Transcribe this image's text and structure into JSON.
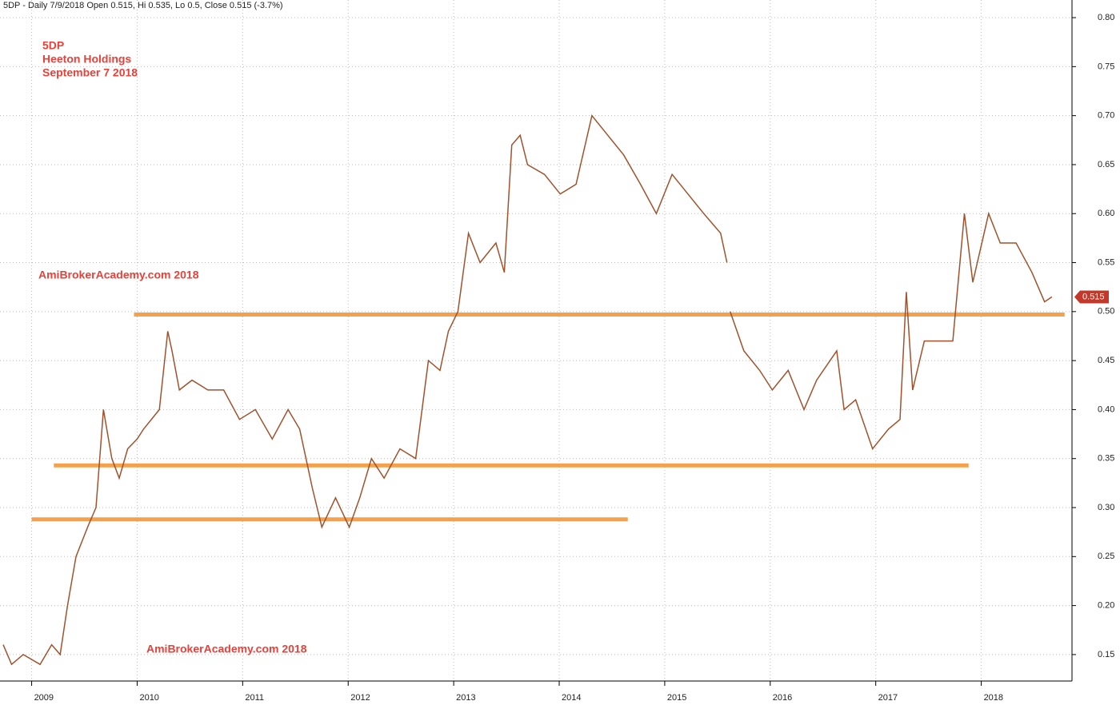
{
  "chart_data": {
    "type": "line",
    "header": "5DP - Daily 7/9/2018 Open 0.515, Hi 0.535, Lo 0.5, Close 0.515 (-3.7%)",
    "annotations": [
      "5DP",
      "Heeton Holdings",
      "September 7 2018",
      "AmiBrokerAcademy.com  2018",
      "AmiBrokerAcademy.com  2018"
    ],
    "color": "#a0522d",
    "x": [
      2008.73,
      2008.81,
      2008.92,
      2009.08,
      2009.19,
      2009.27,
      2009.34,
      2009.42,
      2009.53,
      2009.61,
      2009.68,
      2009.76,
      2009.83,
      2009.91,
      2010.0,
      2010.06,
      2010.21,
      2010.29,
      2010.33,
      2010.4,
      2010.52,
      2010.67,
      2010.82,
      2010.97,
      2011.12,
      2011.28,
      2011.43,
      2011.54,
      2011.66,
      2011.75,
      2011.88,
      2012.01,
      2012.11,
      2012.22,
      2012.34,
      2012.49,
      2012.64,
      2012.76,
      2012.87,
      2012.95,
      2013.04,
      2013.14,
      2013.25,
      2013.4,
      2013.48,
      2013.55,
      2013.63,
      2013.7,
      2013.86,
      2014.01,
      2014.16,
      2014.31,
      2014.46,
      2014.61,
      2014.77,
      2014.92,
      2015.07,
      2015.22,
      2015.37,
      2015.53,
      2015.59,
      2015.6,
      2015.62,
      2015.75,
      2015.9,
      2016.02,
      2016.17,
      2016.32,
      2016.44,
      2016.63,
      2016.7,
      2016.81,
      2016.97,
      2017.12,
      2017.23,
      2017.29,
      2017.35,
      2017.46,
      2017.57,
      2017.73,
      2017.84,
      2017.92,
      2018.07,
      2018.18,
      2018.33,
      2018.48,
      2018.6,
      2018.67
    ],
    "values": [
      0.16,
      0.14,
      0.15,
      0.14,
      0.16,
      0.15,
      0.2,
      0.25,
      0.28,
      0.3,
      0.4,
      0.35,
      0.33,
      0.36,
      0.37,
      0.38,
      0.4,
      0.48,
      0.46,
      0.42,
      0.43,
      0.42,
      0.42,
      0.39,
      0.4,
      0.37,
      0.4,
      0.38,
      0.32,
      0.28,
      0.31,
      0.28,
      0.31,
      0.35,
      0.33,
      0.36,
      0.35,
      0.45,
      0.44,
      0.48,
      0.5,
      0.58,
      0.55,
      0.57,
      0.54,
      0.67,
      0.68,
      0.65,
      0.64,
      0.62,
      0.63,
      0.7,
      0.68,
      0.66,
      0.63,
      0.6,
      0.64,
      0.62,
      0.6,
      0.58,
      0.55,
      null,
      0.5,
      0.46,
      0.44,
      0.42,
      0.44,
      0.4,
      0.43,
      0.46,
      0.4,
      0.41,
      0.36,
      0.38,
      0.39,
      0.52,
      0.42,
      0.47,
      0.47,
      0.47,
      0.6,
      0.53,
      0.6,
      0.57,
      0.57,
      0.54,
      0.51,
      0.515
    ],
    "hlines": [
      {
        "value": 0.497,
        "start": 2009.97,
        "end": 2018.79,
        "color": "#f5a04a"
      },
      {
        "value": 0.343,
        "start": 2009.21,
        "end": 2017.88,
        "color": "#f5a04a"
      },
      {
        "value": 0.288,
        "start": 2009.0,
        "end": 2014.65,
        "color": "#f5a04a"
      }
    ],
    "last_price": {
      "value": 0.515,
      "label": "0.515"
    },
    "xlim": [
      2008.7,
      2018.86
    ],
    "ylim": [
      0.123,
      0.818
    ],
    "xticks": [
      2009,
      2010,
      2011,
      2012,
      2013,
      2014,
      2015,
      2016,
      2017,
      2018
    ],
    "yticks": [
      0.15,
      {
        "value": 0.2,
        "label": "0.20"
      },
      0.25,
      {
        "value": 0.3,
        "label": "0.30"
      },
      0.35,
      {
        "value": 0.4,
        "label": "0.40"
      },
      0.45,
      {
        "value": 0.5,
        "label": "0.50"
      },
      0.55,
      {
        "value": 0.6,
        "label": "0.60"
      },
      0.65,
      {
        "value": 0.7,
        "label": "0.70"
      },
      0.75,
      {
        "value": 0.8,
        "label": "0.80"
      }
    ],
    "grid": true
  }
}
